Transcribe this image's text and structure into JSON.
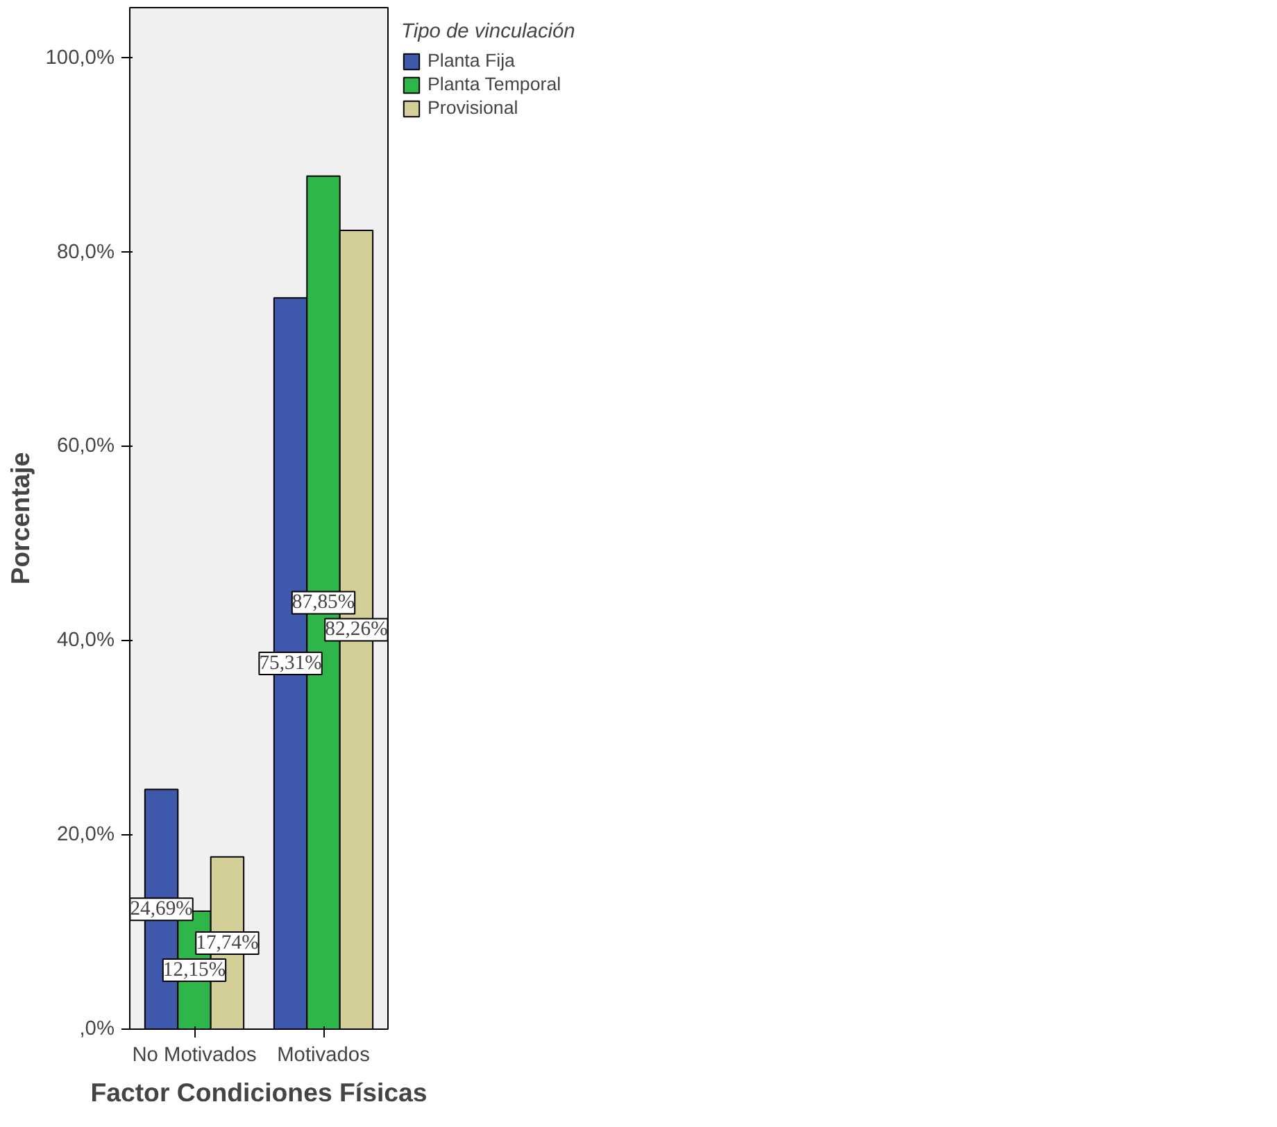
{
  "chart_data": {
    "type": "bar",
    "xlabel": "Factor Condiciones Físicas",
    "ylabel": "Porcentaje",
    "legend_title": "Tipo de vinculación",
    "legend": "right",
    "categories": [
      "No Motivados",
      "Motivados"
    ],
    "series": [
      {
        "name": "Planta Fija",
        "color": "#3e58ac",
        "values": [
          24.69,
          75.31
        ],
        "value_labels": [
          "24,69%",
          "75,31%"
        ]
      },
      {
        "name": "Planta Temporal",
        "color": "#2fb64a",
        "values": [
          12.15,
          87.85
        ],
        "value_labels": [
          "12,15%",
          "87,85%"
        ]
      },
      {
        "name": "Provisional",
        "color": "#d4cf98",
        "values": [
          17.74,
          82.26
        ],
        "value_labels": [
          "17,74%",
          "82,26%"
        ]
      }
    ],
    "ylim": [
      0,
      105.2
    ],
    "yticks": [
      {
        "value": 0,
        "label": ",0%"
      },
      {
        "value": 20,
        "label": "20,0%"
      },
      {
        "value": 40,
        "label": "40,0%"
      },
      {
        "value": 60,
        "label": "60,0%"
      },
      {
        "value": 80,
        "label": "80,0%"
      },
      {
        "value": 100,
        "label": "100,0%"
      }
    ],
    "grid": false
  }
}
